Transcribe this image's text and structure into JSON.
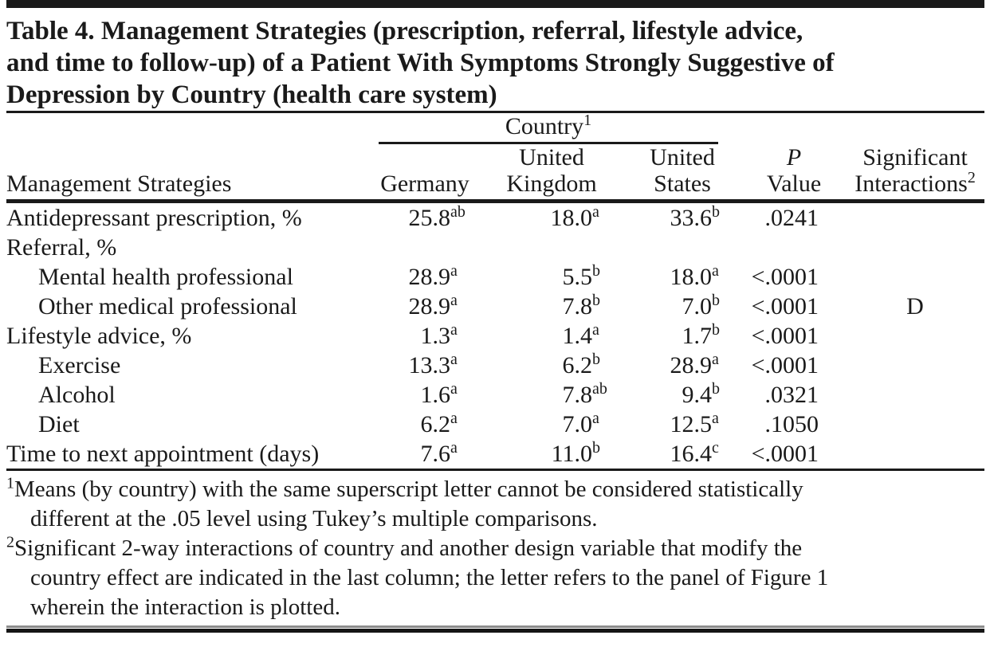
{
  "title": {
    "lines": [
      "Table 4. Management Strategies (prescription, referral, lifestyle advice,",
      "and time to follow-up) of a Patient With Symptoms Strongly Suggestive of",
      "Depression by Country (health care system)"
    ]
  },
  "header": {
    "group": "Country",
    "group_sup": "1",
    "columns": {
      "label": "Management Strategies",
      "germany": "Germany",
      "uk_line1": "United",
      "uk_line2": "Kingdom",
      "us_line1": "United",
      "us_line2": "States",
      "p_line1": "P",
      "p_line2": "Value",
      "sig_line1": "Significant",
      "sig_line2": "Interactions",
      "sig_sup": "2"
    }
  },
  "table": {
    "rows": [
      {
        "label": "Antidepressant prescription, %",
        "indent": 0,
        "germany": "25.8",
        "germany_sup": "ab",
        "uk": "18.0",
        "uk_sup": "a",
        "us": "33.6",
        "us_sup": "b",
        "p": ".0241",
        "sig": ""
      },
      {
        "label": "Referral, %",
        "indent": 0,
        "germany": "",
        "germany_sup": "",
        "uk": "",
        "uk_sup": "",
        "us": "",
        "us_sup": "",
        "p": "",
        "sig": ""
      },
      {
        "label": "Mental health professional",
        "indent": 1,
        "germany": "28.9",
        "germany_sup": "a",
        "uk": "5.5",
        "uk_sup": "b",
        "us": "18.0",
        "us_sup": "a",
        "p": "<.0001",
        "sig": ""
      },
      {
        "label": "Other medical professional",
        "indent": 1,
        "germany": "28.9",
        "germany_sup": "a",
        "uk": "7.8",
        "uk_sup": "b",
        "us": "7.0",
        "us_sup": "b",
        "p": "<.0001",
        "sig": "D"
      },
      {
        "label": "Lifestyle advice, %",
        "indent": 0,
        "germany": "1.3",
        "germany_sup": "a",
        "uk": "1.4",
        "uk_sup": "a",
        "us": "1.7",
        "us_sup": "b",
        "p": "<.0001",
        "sig": ""
      },
      {
        "label": "Exercise",
        "indent": 1,
        "germany": "13.3",
        "germany_sup": "a",
        "uk": "6.2",
        "uk_sup": "b",
        "us": "28.9",
        "us_sup": "a",
        "p": "<.0001",
        "sig": ""
      },
      {
        "label": "Alcohol",
        "indent": 1,
        "germany": "1.6",
        "germany_sup": "a",
        "uk": "7.8",
        "uk_sup": "ab",
        "us": "9.4",
        "us_sup": "b",
        "p": ".0321",
        "sig": ""
      },
      {
        "label": "Diet",
        "indent": 1,
        "germany": "6.2",
        "germany_sup": "a",
        "uk": "7.0",
        "uk_sup": "a",
        "us": "12.5",
        "us_sup": "a",
        "p": ".1050",
        "sig": ""
      },
      {
        "label": "Time to next appointment (days)",
        "indent": 0,
        "germany": "7.6",
        "germany_sup": "a",
        "uk": "11.0",
        "uk_sup": "b",
        "us": "16.4",
        "us_sup": "c",
        "p": "<.0001",
        "sig": ""
      }
    ]
  },
  "footnotes": [
    {
      "marker": "1",
      "lines": [
        "Means (by country) with the same superscript letter cannot be considered statistically",
        "different at the .05 level using Tukey’s multiple comparisons."
      ]
    },
    {
      "marker": "2",
      "lines": [
        "Significant 2-way interactions of country and another design variable that modify the",
        "country effect are indicated in the last column; the letter refers to the panel of Figure 1",
        "wherein the interaction is plotted."
      ]
    }
  ],
  "colors": {
    "text": "#1a1a1a",
    "rule": "#1a1a1a",
    "bottom_rule_gray": "#8c8c8c",
    "background": "#ffffff"
  }
}
